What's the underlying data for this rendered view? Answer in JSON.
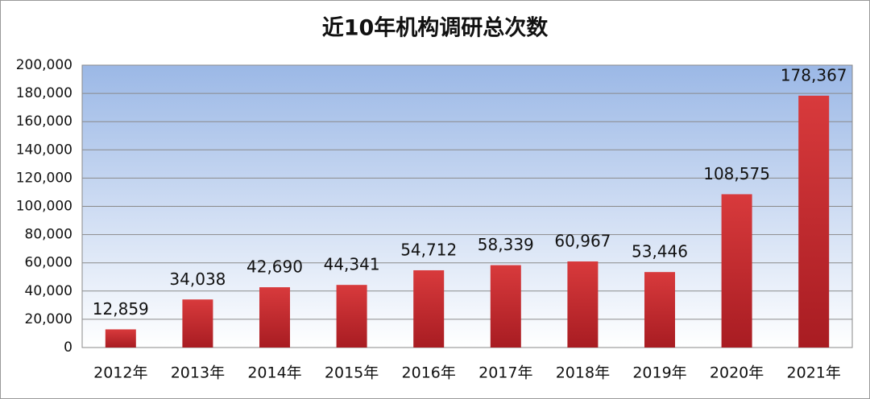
{
  "chart_data": {
    "type": "bar",
    "title": "近10年机构调研总次数",
    "categories": [
      "2012年",
      "2013年",
      "2014年",
      "2015年",
      "2016年",
      "2017年",
      "2018年",
      "2019年",
      "2020年",
      "2021年"
    ],
    "values": [
      12859,
      34038,
      42690,
      44341,
      54712,
      58339,
      60967,
      53446,
      108575,
      178367
    ],
    "value_labels": [
      "12,859",
      "34,038",
      "42,690",
      "44,341",
      "54,712",
      "58,339",
      "60,967",
      "53,446",
      "108,575",
      "178,367"
    ],
    "color": "#c0272d",
    "ylim": [
      0,
      200000
    ],
    "yticks": [
      0,
      {
        "value": 20000,
        "label": "20,000"
      },
      {
        "value": 40000,
        "label": "40,000"
      },
      {
        "value": 60000,
        "label": "60,000"
      },
      {
        "value": 80000,
        "label": "80,000"
      },
      {
        "value": 100000,
        "label": "100,000"
      },
      {
        "value": 120000,
        "label": "120,000"
      },
      {
        "value": 140000,
        "label": "140,000"
      },
      {
        "value": 160000,
        "label": "160,000"
      },
      {
        "value": 180000,
        "label": "180,000"
      },
      {
        "value": 200000,
        "label": "200,000"
      }
    ],
    "grid": true
  }
}
